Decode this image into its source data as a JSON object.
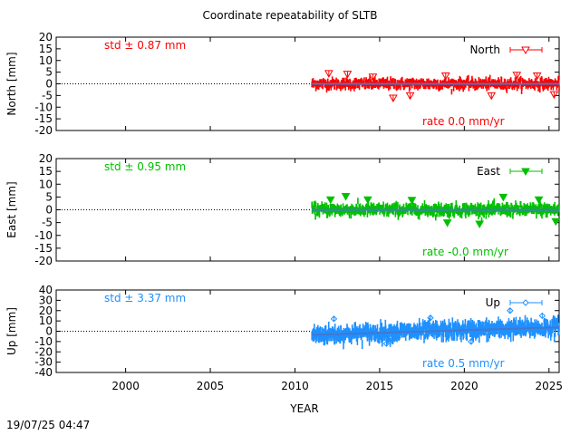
{
  "chart_data": {
    "type": "scatter",
    "title": "Coordinate repeatability of SLTB",
    "xlabel": "YEAR",
    "xlim": [
      1995.9,
      2025.6
    ],
    "xticks": [
      2000,
      2005,
      2010,
      2015,
      2020,
      2025
    ],
    "xtick_labels": [
      "2000",
      "2005",
      "2010",
      "2015",
      "2020",
      "2025"
    ],
    "timestamp": "19/07/25 04:47",
    "grid": false,
    "panels": [
      {
        "name": "North",
        "ylabel": "North [mm]",
        "ylim": [
          -20,
          20
        ],
        "yticks": [
          -20,
          -15,
          -10,
          -5,
          0,
          5,
          10,
          15,
          20
        ],
        "ytick_labels": [
          "-20",
          "-15",
          "-10",
          "-5",
          "0",
          "5",
          "10",
          "15",
          "20"
        ],
        "color": "#ff0000",
        "trend_color": "#4477cc",
        "marker": "triangle-down-open",
        "legend": "North",
        "legend_position": "top-right",
        "std_label": "std ± 0.87 mm",
        "rate_label": "rate  0.0 mm/yr",
        "std_mm": 0.87,
        "rate_mm_yr": 0.0,
        "data_start_year": 2011.0,
        "data_end_year": 2025.6,
        "trend": {
          "x": [
            2011.0,
            2025.6
          ],
          "y": [
            0.0,
            0.0
          ]
        },
        "extremes": [
          {
            "x": 2012.0,
            "y": 4.5
          },
          {
            "x": 2013.1,
            "y": 4.2
          },
          {
            "x": 2014.6,
            "y": 3.0
          },
          {
            "x": 2015.8,
            "y": -6.0
          },
          {
            "x": 2016.8,
            "y": -5.0
          },
          {
            "x": 2018.9,
            "y": 3.5
          },
          {
            "x": 2021.6,
            "y": -5.0
          },
          {
            "x": 2023.1,
            "y": 3.8
          },
          {
            "x": 2024.3,
            "y": 3.5
          },
          {
            "x": 2025.3,
            "y": -4.5
          }
        ]
      },
      {
        "name": "East",
        "ylabel": "East [mm]",
        "ylim": [
          -20,
          20
        ],
        "yticks": [
          -20,
          -15,
          -10,
          -5,
          0,
          5,
          10,
          15,
          20
        ],
        "ytick_labels": [
          "-20",
          "-15",
          "-10",
          "-5",
          "0",
          "5",
          "10",
          "15",
          "20"
        ],
        "color": "#00c000",
        "trend_color": "#4477cc",
        "marker": "triangle-down-filled",
        "legend": "East",
        "legend_position": "top-right",
        "std_label": "std ± 0.95 mm",
        "rate_label": "rate -0.0 mm/yr",
        "std_mm": 0.95,
        "rate_mm_yr": -0.0,
        "data_start_year": 2011.0,
        "data_end_year": 2025.6,
        "trend": {
          "x": [
            2011.0,
            2025.6
          ],
          "y": [
            0.0,
            0.0
          ]
        },
        "extremes": [
          {
            "x": 2012.1,
            "y": 4.0
          },
          {
            "x": 2013.0,
            "y": 5.3
          },
          {
            "x": 2014.3,
            "y": 4.0
          },
          {
            "x": 2016.9,
            "y": 3.8
          },
          {
            "x": 2019.0,
            "y": -5.0
          },
          {
            "x": 2020.9,
            "y": -5.5
          },
          {
            "x": 2022.3,
            "y": 5.0
          },
          {
            "x": 2024.4,
            "y": 4.0
          },
          {
            "x": 2025.4,
            "y": -4.5
          }
        ]
      },
      {
        "name": "Up",
        "ylabel": "Up [mm]",
        "ylim": [
          -40,
          40
        ],
        "yticks": [
          -40,
          -30,
          -20,
          -10,
          0,
          10,
          20,
          30,
          40
        ],
        "ytick_labels": [
          "-40",
          "-30",
          "-20",
          "-10",
          "0",
          "10",
          "20",
          "30",
          "40"
        ],
        "color": "#1e90ff",
        "trend_color": "#4477cc",
        "marker": "diamond-open",
        "legend": "Up",
        "legend_position": "top-right",
        "std_label": "std ± 3.37 mm",
        "rate_label": "rate  0.5 mm/yr",
        "std_mm": 3.37,
        "rate_mm_yr": 0.5,
        "data_start_year": 2011.0,
        "data_end_year": 2025.6,
        "trend": {
          "x": [
            2011.0,
            2025.6
          ],
          "y": [
            -3.5,
            3.8
          ]
        },
        "extremes": [
          {
            "x": 2012.3,
            "y": 12.0
          },
          {
            "x": 2015.4,
            "y": -12.0
          },
          {
            "x": 2018.0,
            "y": 13.0
          },
          {
            "x": 2020.4,
            "y": -10.0
          },
          {
            "x": 2022.7,
            "y": 20.0
          },
          {
            "x": 2024.6,
            "y": 15.0
          }
        ]
      }
    ]
  }
}
